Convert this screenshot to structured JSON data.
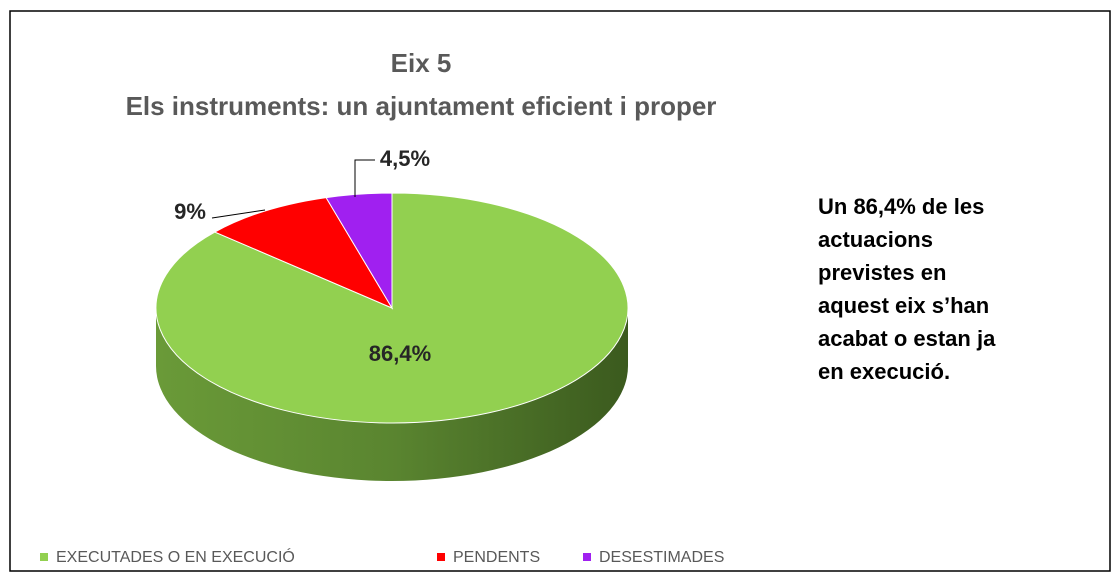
{
  "chart_data": {
    "type": "pie",
    "title": "Eix 5",
    "subtitle": "Els instruments: un ajuntament eficient i proper",
    "annotation": "Un 86,4% de les actuacions previstes en aquest eix s’han acabat o estan ja en execució.",
    "categories": [
      "EXECUTADES  O EN EXECUCIÓ",
      "PENDENTS",
      "DESESTIMADES"
    ],
    "values": [
      86.4,
      9,
      4.5
    ],
    "value_labels": [
      "86,4%",
      "9%",
      "4,5%"
    ],
    "colors": [
      "#92d050",
      "#ff0000",
      "#a020f0"
    ],
    "legend": "bottom"
  }
}
